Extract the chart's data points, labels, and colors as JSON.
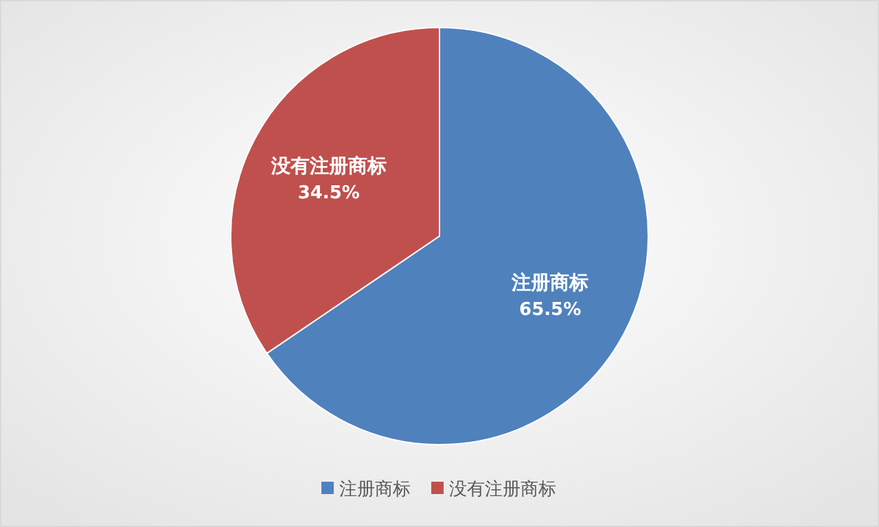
{
  "chart_data": {
    "type": "pie",
    "categories": [
      "注册商标",
      "没有注册商标"
    ],
    "values": [
      65.5,
      34.5
    ],
    "colors": [
      "#4f81bd",
      "#c0504d"
    ],
    "value_labels": [
      "65.5%",
      "34.5%"
    ],
    "legend": "bottom"
  }
}
